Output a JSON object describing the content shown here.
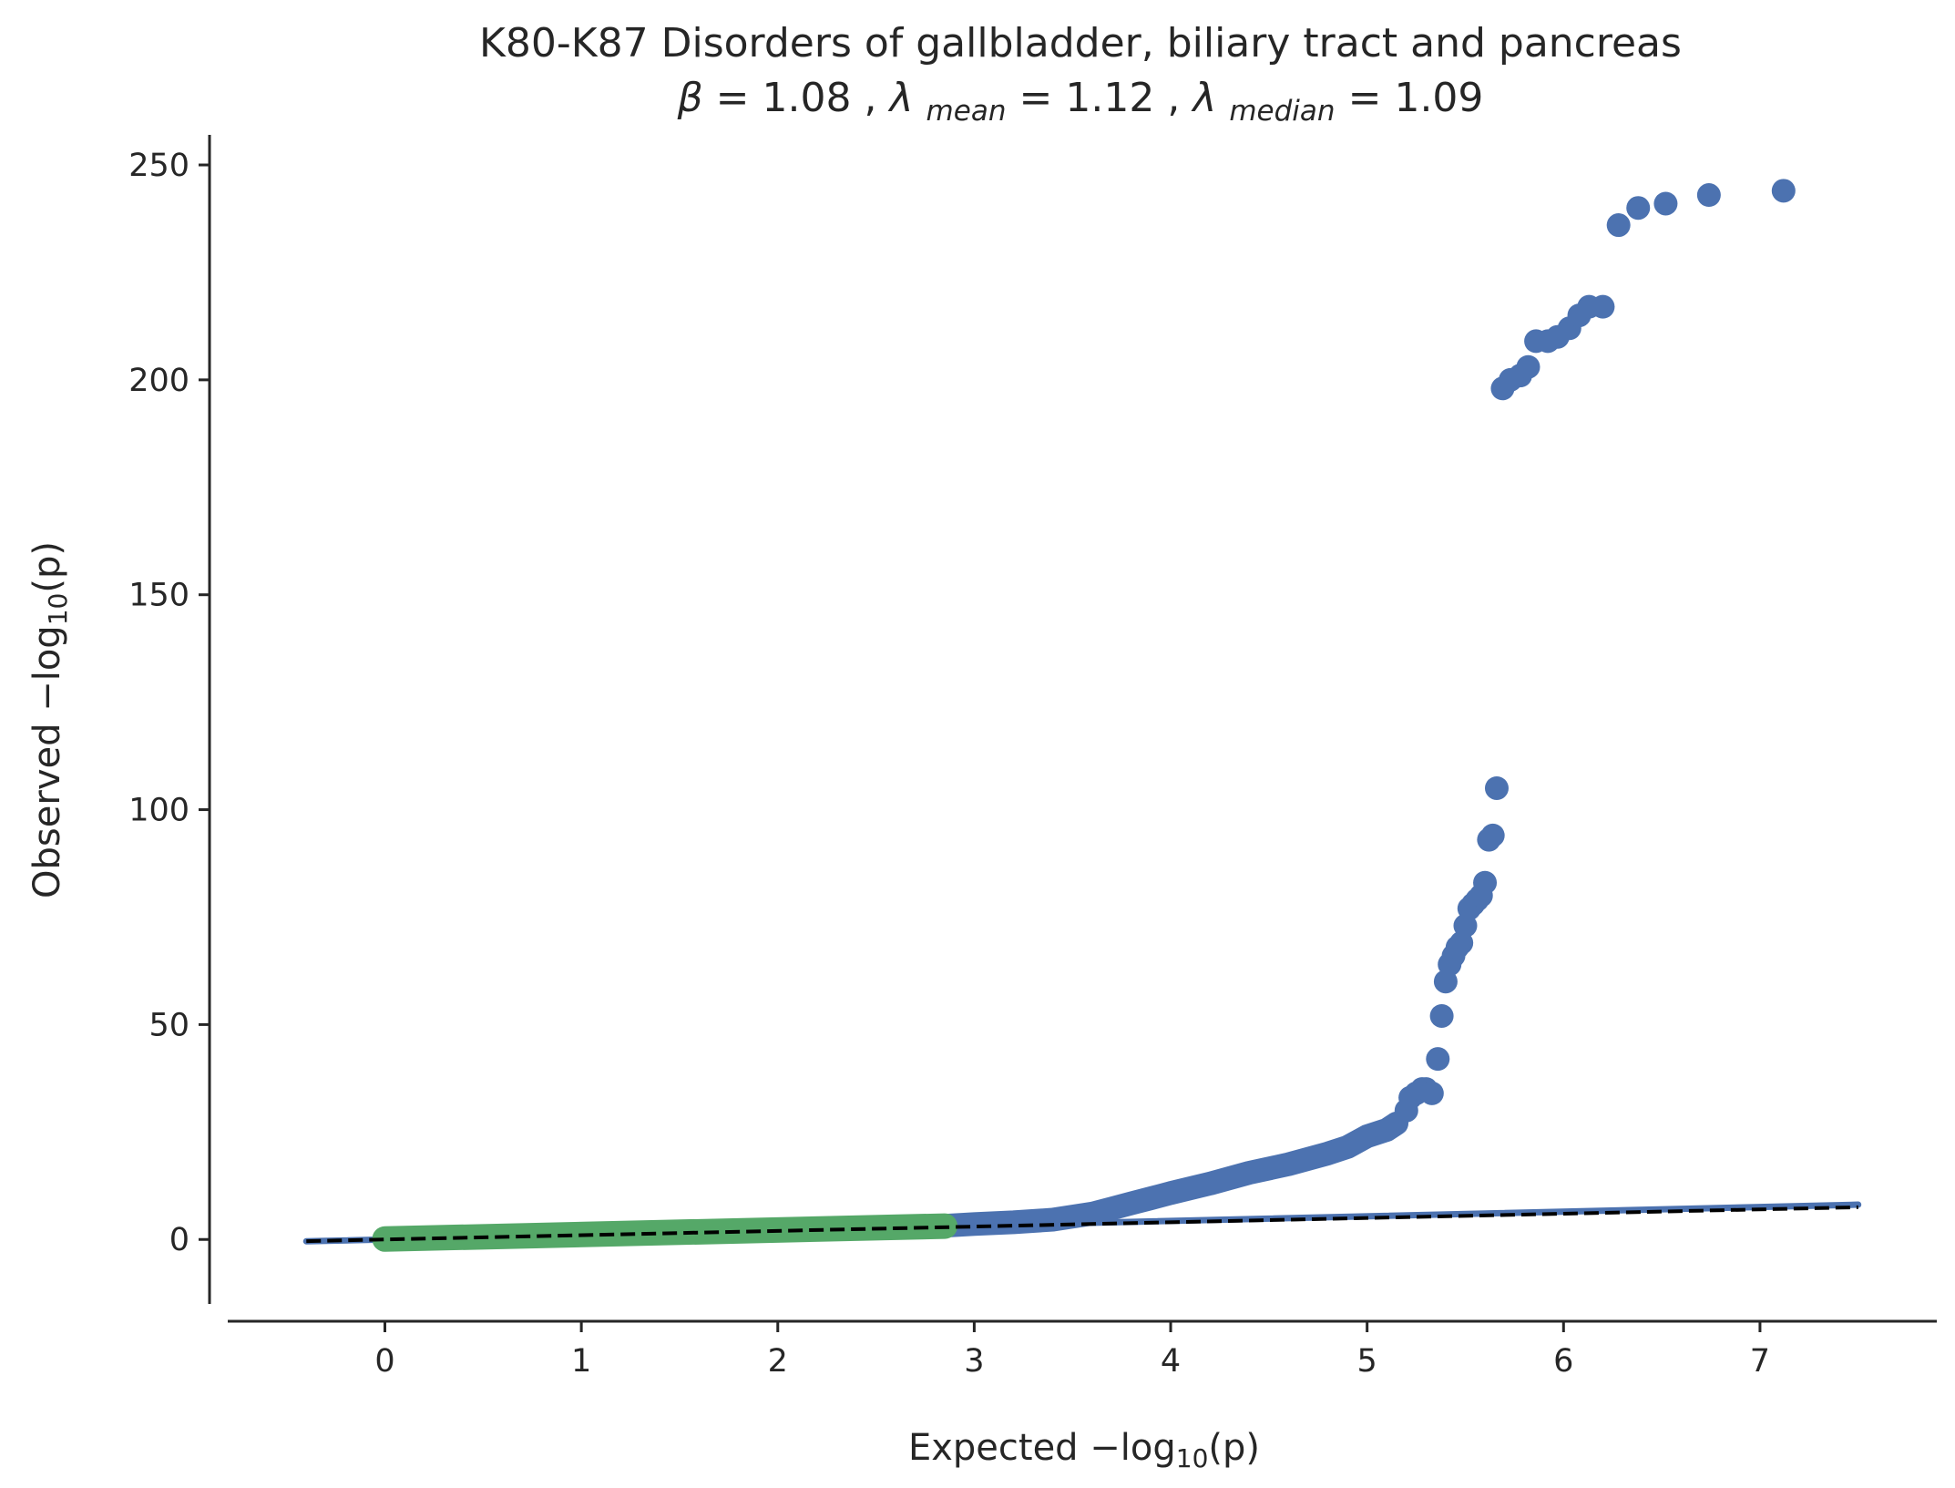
{
  "chart_data": {
    "type": "scatter",
    "title": "K80-K87 Disorders of gallbladder, biliary tract and pancreas",
    "subtitle_parts": {
      "beta_label": "β",
      "beta_value": "1.08",
      "lambda_label": "λ",
      "mean_sub": "mean",
      "mean_value": "1.12",
      "median_sub": "median",
      "median_value": "1.09"
    },
    "xlabel": {
      "prefix": "Expected −log",
      "sub": "10",
      "suffix": "(p)"
    },
    "ylabel": {
      "prefix": "Observed −log",
      "sub": "10",
      "suffix": "(p)"
    },
    "xlim": [
      -0.8,
      7.9
    ],
    "ylim": [
      -15,
      257
    ],
    "xticks": [
      0,
      1,
      2,
      3,
      4,
      5,
      6,
      7
    ],
    "yticks": [
      0,
      50,
      100,
      150,
      200,
      250
    ],
    "grid": false,
    "legend": "none",
    "colors": {
      "blue": "#4c72b0",
      "green": "#55a868",
      "dashed": "#000000",
      "axis": "#262626"
    },
    "reference_line": {
      "x": [
        -0.4,
        7.5
      ],
      "y": [
        -0.4,
        7.5
      ],
      "style": "dashed"
    },
    "expected_fit_line": {
      "x": [
        -0.4,
        7.5
      ],
      "y": [
        -0.43,
        8.1
      ]
    },
    "green_band": {
      "x": [
        0.0,
        2.85
      ],
      "y": [
        0.1,
        3.1
      ]
    },
    "blue_band": {
      "x": [
        2.85,
        3.0,
        3.2,
        3.4,
        3.6,
        3.7,
        3.8,
        3.9,
        4.0,
        4.2,
        4.4,
        4.6,
        4.8,
        4.9,
        5.0,
        5.1,
        5.15
      ],
      "y": [
        3.2,
        3.6,
        4.0,
        4.6,
        6.0,
        7.2,
        8.4,
        9.6,
        10.8,
        13.0,
        15.5,
        17.5,
        20.0,
        21.5,
        24.0,
        25.5,
        27.0
      ]
    },
    "blue_points": {
      "x": [
        5.2,
        5.22,
        5.25,
        5.28,
        5.3,
        5.33,
        5.36,
        5.38,
        5.4,
        5.42,
        5.44,
        5.46,
        5.48,
        5.5,
        5.52,
        5.54,
        5.56,
        5.58,
        5.6,
        5.62,
        5.64,
        5.66,
        5.69,
        5.73,
        5.78,
        5.82,
        5.86,
        5.92,
        5.97,
        6.03,
        6.08,
        6.13,
        6.2,
        6.28,
        6.38,
        6.52,
        6.74,
        7.12
      ],
      "y": [
        30,
        33,
        34,
        35,
        35,
        34,
        42,
        52,
        60,
        64,
        66,
        68,
        69,
        73,
        77,
        78,
        79,
        80,
        83,
        93,
        94,
        105,
        198,
        200,
        201,
        203,
        209,
        209,
        210,
        212,
        215,
        217,
        217,
        236,
        240,
        241,
        243,
        244
      ]
    }
  }
}
